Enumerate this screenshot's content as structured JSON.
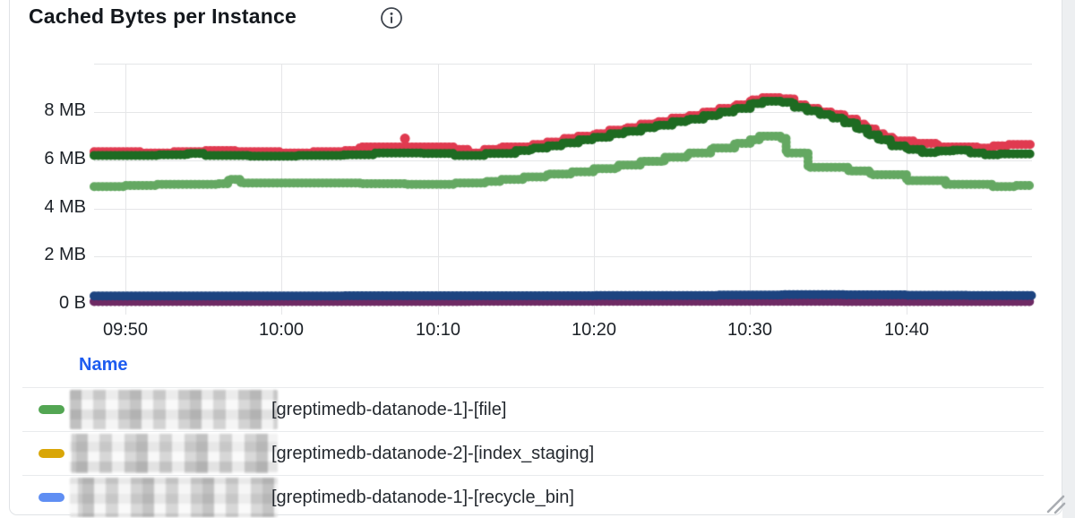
{
  "panel": {
    "title": "Cached Bytes per Instance"
  },
  "icons": {
    "info": "info-circle",
    "resize": "diagonal-resize-grip"
  },
  "colors": {
    "grid": "#e5e6e8",
    "axis_text": "#1c2127",
    "title_text": "#14181d",
    "legend_header": "#1d5cf0",
    "legend_text": "#24292f",
    "panel_border": "#e0e3e6",
    "right_gutter": "#edeff1",
    "resize_handle": "#a9adb2"
  },
  "chart_data": {
    "type": "scatter",
    "style": "dotted-step-lines",
    "title": "Cached Bytes per Instance",
    "x_axis": {
      "start_label": "09:48",
      "end_label": "10:48",
      "tick_labels": [
        "09:50",
        "10:00",
        "10:10",
        "10:20",
        "10:30",
        "10:40"
      ],
      "tick_minutes": [
        2,
        12,
        22,
        32,
        42,
        52
      ]
    },
    "y_axis": {
      "unit": "bytes",
      "tick_labels": [
        "0 B",
        "2 MB",
        "4 MB",
        "6 MB",
        "8 MB"
      ],
      "tick_values_mb": [
        0,
        2,
        4,
        6,
        8
      ],
      "gridline_values_mb": [
        0,
        2,
        4,
        6,
        8,
        10
      ],
      "ylim_mb": [
        0,
        10
      ]
    },
    "series": [
      {
        "name": "crimson-series",
        "color": "#e03a50",
        "points": [
          [
            0,
            6.35
          ],
          [
            3,
            6.3
          ],
          [
            5,
            6.35
          ],
          [
            7,
            6.4
          ],
          [
            9,
            6.35
          ],
          [
            12,
            6.3
          ],
          [
            14,
            6.35
          ],
          [
            16,
            6.4
          ],
          [
            17,
            6.55
          ],
          [
            21,
            6.55
          ],
          [
            23,
            6.45
          ],
          [
            24,
            6.3
          ],
          [
            25,
            6.45
          ],
          [
            26,
            6.55
          ],
          [
            28,
            6.65
          ],
          [
            29,
            6.75
          ],
          [
            30,
            6.9
          ],
          [
            31,
            7.0
          ],
          [
            32,
            7.1
          ],
          [
            33,
            7.25
          ],
          [
            34,
            7.35
          ],
          [
            35,
            7.5
          ],
          [
            36,
            7.6
          ],
          [
            37,
            7.75
          ],
          [
            38,
            7.85
          ],
          [
            39,
            8.0
          ],
          [
            40,
            8.15
          ],
          [
            41,
            8.3
          ],
          [
            42,
            8.5
          ],
          [
            42.8,
            8.6
          ],
          [
            44,
            8.55
          ],
          [
            44.8,
            8.3
          ],
          [
            45.6,
            8.15
          ],
          [
            46.4,
            8.0
          ],
          [
            47.2,
            7.9
          ],
          [
            48,
            7.7
          ],
          [
            48.8,
            7.5
          ],
          [
            49.4,
            7.3
          ],
          [
            50,
            7.1
          ],
          [
            50.6,
            6.95
          ],
          [
            51.2,
            6.8
          ],
          [
            52.5,
            6.7
          ],
          [
            54,
            6.55
          ],
          [
            56.5,
            6.5
          ],
          [
            57.5,
            6.6
          ],
          [
            58.5,
            6.65
          ],
          [
            60,
            6.65
          ]
        ]
      },
      {
        "name": "dark-green-series",
        "color": "#1e6b22",
        "points": [
          [
            0,
            6.2
          ],
          [
            4,
            6.22
          ],
          [
            6,
            6.28
          ],
          [
            7,
            6.2
          ],
          [
            10,
            6.17
          ],
          [
            13,
            6.2
          ],
          [
            16,
            6.22
          ],
          [
            18,
            6.3
          ],
          [
            21,
            6.28
          ],
          [
            23,
            6.2
          ],
          [
            25,
            6.28
          ],
          [
            27,
            6.4
          ],
          [
            28,
            6.5
          ],
          [
            29,
            6.6
          ],
          [
            30,
            6.72
          ],
          [
            31,
            6.85
          ],
          [
            32,
            6.95
          ],
          [
            33,
            7.1
          ],
          [
            34,
            7.2
          ],
          [
            35,
            7.35
          ],
          [
            36,
            7.45
          ],
          [
            37,
            7.6
          ],
          [
            38,
            7.7
          ],
          [
            39,
            7.85
          ],
          [
            40,
            8.0
          ],
          [
            41,
            8.15
          ],
          [
            42,
            8.35
          ],
          [
            42.8,
            8.45
          ],
          [
            44,
            8.4
          ],
          [
            44.8,
            8.2
          ],
          [
            45.6,
            8.05
          ],
          [
            46.4,
            7.9
          ],
          [
            47.2,
            7.75
          ],
          [
            48,
            7.55
          ],
          [
            48.8,
            7.3
          ],
          [
            49.5,
            7.05
          ],
          [
            50.2,
            6.85
          ],
          [
            51,
            6.6
          ],
          [
            52,
            6.45
          ],
          [
            53,
            6.32
          ],
          [
            54,
            6.38
          ],
          [
            55,
            6.42
          ],
          [
            56,
            6.3
          ],
          [
            57,
            6.22
          ],
          [
            58,
            6.26
          ],
          [
            60,
            6.2
          ]
        ]
      },
      {
        "name": "light-green-series",
        "color": "#64a862",
        "points": [
          [
            0,
            4.9
          ],
          [
            2,
            4.95
          ],
          [
            4,
            5.0
          ],
          [
            8,
            5.02
          ],
          [
            8.6,
            5.2
          ],
          [
            9.4,
            5.05
          ],
          [
            13,
            5.05
          ],
          [
            17,
            5.02
          ],
          [
            20,
            5.0
          ],
          [
            23,
            5.05
          ],
          [
            25,
            5.12
          ],
          [
            26,
            5.2
          ],
          [
            27.5,
            5.3
          ],
          [
            29,
            5.42
          ],
          [
            30.5,
            5.52
          ],
          [
            32,
            5.65
          ],
          [
            33.5,
            5.8
          ],
          [
            35,
            5.95
          ],
          [
            36.5,
            6.12
          ],
          [
            38,
            6.3
          ],
          [
            39.5,
            6.5
          ],
          [
            41,
            6.7
          ],
          [
            42,
            6.85
          ],
          [
            42.6,
            7.0
          ],
          [
            44,
            6.9
          ],
          [
            44.3,
            6.3
          ],
          [
            45.7,
            5.7
          ],
          [
            48.3,
            5.55
          ],
          [
            49.7,
            5.4
          ],
          [
            52,
            5.15
          ],
          [
            54.5,
            5.0
          ],
          [
            57.5,
            4.9
          ],
          [
            59,
            4.95
          ],
          [
            60,
            4.95
          ]
        ]
      },
      {
        "name": "purple-series",
        "color": "#6e2a64",
        "points": [
          [
            0,
            0.13
          ],
          [
            12,
            0.13
          ],
          [
            24,
            0.14
          ],
          [
            36,
            0.14
          ],
          [
            48,
            0.13
          ],
          [
            60,
            0.13
          ]
        ]
      },
      {
        "name": "navy-series",
        "color": "#1d4480",
        "points": [
          [
            0,
            0.36
          ],
          [
            8,
            0.36
          ],
          [
            16,
            0.37
          ],
          [
            24,
            0.37
          ],
          [
            32,
            0.38
          ],
          [
            40,
            0.4
          ],
          [
            44,
            0.42
          ],
          [
            48,
            0.41
          ],
          [
            52,
            0.39
          ],
          [
            56,
            0.38
          ],
          [
            60,
            0.38
          ]
        ]
      }
    ],
    "outliers": [
      {
        "series": "crimson-series",
        "minute": 19.9,
        "mb": 6.9
      }
    ]
  },
  "legend": {
    "header": "Name",
    "rows": [
      {
        "marker_color": "#53a653",
        "prefix_redacted": true,
        "label": "[greptimedb-datanode-1]-[file]"
      },
      {
        "marker_color": "#d9a607",
        "prefix_redacted": true,
        "label": "[greptimedb-datanode-2]-[index_staging]"
      },
      {
        "marker_color": "#5f8ef3",
        "prefix_redacted": true,
        "label": "[greptimedb-datanode-1]-[recycle_bin]"
      }
    ]
  }
}
